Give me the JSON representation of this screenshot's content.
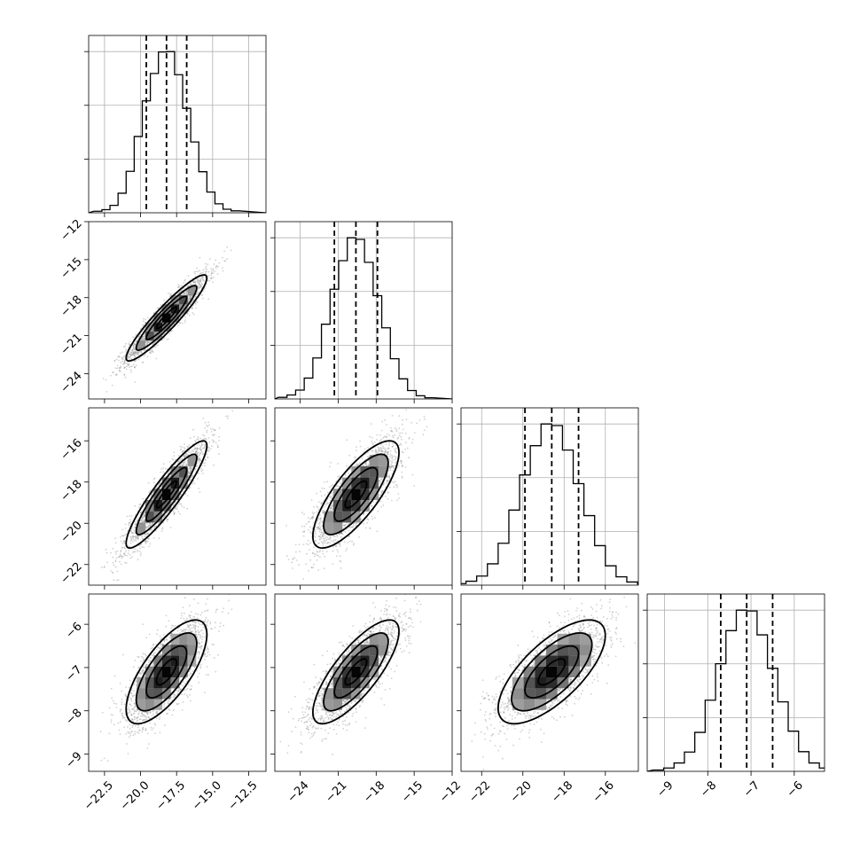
{
  "chart_data": {
    "type": "corner",
    "grid": true,
    "parameters": [
      {
        "mean": -18.2,
        "q16": -19.6,
        "q50": -18.2,
        "q84": -16.8,
        "range": [
          -23.6,
          -11.3
        ],
        "ticks": [
          -22.5,
          -20.0,
          -17.5,
          -15.0,
          -12.5
        ],
        "tick_labels": [
          "−22.5",
          "−20.0",
          "−17.5",
          "−15.0",
          "−12.5"
        ]
      },
      {
        "mean": -19.6,
        "q16": -21.3,
        "q50": -19.6,
        "q84": -17.9,
        "range": [
          -26.0,
          -12.0
        ],
        "ticks": [
          -24,
          -21,
          -18,
          -15,
          -12
        ],
        "tick_labels": [
          "−24",
          "−21",
          "−18",
          "−15",
          "−12"
        ]
      },
      {
        "mean": -18.6,
        "q16": -19.9,
        "q50": -18.6,
        "q84": -17.3,
        "range": [
          -23.0,
          -14.4
        ],
        "ticks": [
          -22,
          -20,
          -18,
          -16
        ],
        "tick_labels": [
          "−22",
          "−20",
          "−18",
          "−16"
        ]
      },
      {
        "mean": -7.1,
        "q16": -7.7,
        "q50": -7.1,
        "q84": -6.5,
        "range": [
          -9.4,
          -5.3
        ],
        "ticks": [
          -9,
          -8,
          -7,
          -6
        ],
        "tick_labels": [
          "−9",
          "−8",
          "−7",
          "−6"
        ]
      }
    ],
    "histograms": [
      [
        4,
        8,
        19,
        50,
        106,
        195,
        286,
        356,
        411,
        412,
        353,
        267,
        181,
        105,
        53,
        23,
        9,
        5
      ],
      [
        4,
        10,
        22,
        52,
        102,
        186,
        273,
        344,
        401,
        397,
        340,
        257,
        177,
        100,
        50,
        21,
        8,
        3
      ],
      [
        4,
        10,
        23,
        54,
        106,
        190,
        279,
        353,
        408,
        404,
        342,
        257,
        176,
        100,
        49,
        21,
        8,
        3
      ],
      [
        3,
        8,
        20,
        46,
        93,
        170,
        257,
        336,
        385,
        383,
        326,
        246,
        166,
        96,
        47,
        20,
        8,
        3
      ]
    ],
    "correlations": {
      "1-0": 0.93,
      "2-0": 0.91,
      "2-1": 0.78,
      "3-0": 0.72,
      "3-1": 0.78,
      "3-2": 0.7
    },
    "contour_levels": [
      0.5,
      1.0,
      1.5,
      2.0
    ],
    "quantiles": [
      0.16,
      0.5,
      0.84
    ],
    "colors": {
      "line": "#000000",
      "grid": "#b0b0b0",
      "points": "#9a9a9a"
    }
  }
}
